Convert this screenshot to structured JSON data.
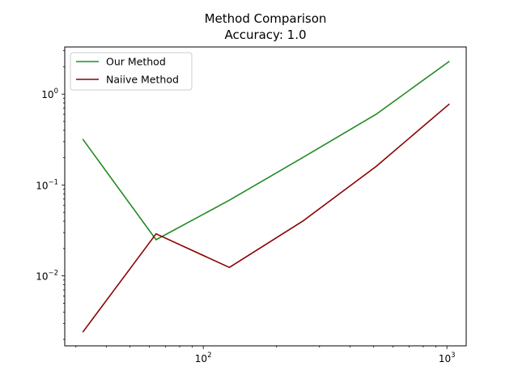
{
  "chart_data": {
    "type": "line",
    "title": "Method Comparison",
    "subtitle": "Accuracy: 1.0",
    "xlabel": "",
    "ylabel": "",
    "xscale": "log",
    "yscale": "log",
    "xlim": [
      27,
      1200
    ],
    "ylim": [
      0.0017,
      3.3
    ],
    "x_ticks": [
      {
        "value": 100,
        "base": "10",
        "exp": "2"
      },
      {
        "value": 1000,
        "base": "10",
        "exp": "3"
      }
    ],
    "y_ticks": [
      {
        "value": 0.01,
        "base": "10",
        "exp": "−2"
      },
      {
        "value": 0.1,
        "base": "10",
        "exp": "−1"
      },
      {
        "value": 1,
        "base": "10",
        "exp": "0"
      }
    ],
    "legend_position": "top-left",
    "grid": false,
    "series": [
      {
        "name": "Our Method",
        "color": "#228b22",
        "x": [
          32,
          64,
          128,
          256,
          512,
          1024
        ],
        "y": [
          0.32,
          0.025,
          0.068,
          0.2,
          0.6,
          2.3
        ]
      },
      {
        "name": "Naiive Method",
        "color": "#8b0000",
        "x": [
          32,
          64,
          128,
          256,
          512,
          1024
        ],
        "y": [
          0.0024,
          0.029,
          0.0124,
          0.04,
          0.16,
          0.78
        ]
      }
    ]
  }
}
